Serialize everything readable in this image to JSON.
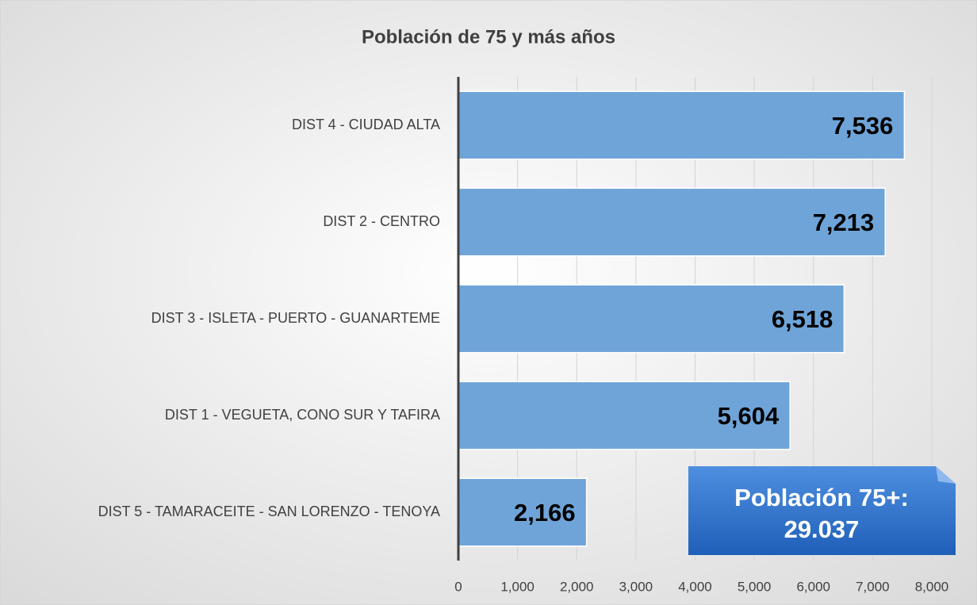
{
  "chart_data": {
    "type": "hbar",
    "title": "Población de 75 y más años",
    "categories": [
      "DIST 4 - CIUDAD ALTA",
      "DIST 2 - CENTRO",
      "DIST 3 - ISLETA - PUERTO - GUANARTEME",
      "DIST 1 - VEGUETA, CONO SUR Y TAFIRA",
      "DIST 5 - TAMARACEITE - SAN LORENZO - TENOYA"
    ],
    "values": [
      7536,
      7213,
      6518,
      5604,
      2166
    ],
    "value_labels": [
      "7,536",
      "7,213",
      "6,518",
      "5,604",
      "2,166"
    ],
    "color": "#6fa4d8",
    "xlim": [
      0,
      8000
    ],
    "xticks": [
      0,
      {
        "value": 1000,
        "label": "1,000"
      },
      {
        "value": 2000,
        "label": "2,000"
      },
      {
        "value": 3000,
        "label": "3,000"
      },
      {
        "value": 4000,
        "label": "4,000"
      },
      {
        "value": 5000,
        "label": "5,000"
      },
      {
        "value": 6000,
        "label": "6,000"
      },
      {
        "value": 7000,
        "label": "7,000"
      },
      {
        "value": 8000,
        "label": "8,000"
      }
    ],
    "grid": true,
    "annotation": [
      "Población 75+:",
      "29.037"
    ]
  }
}
